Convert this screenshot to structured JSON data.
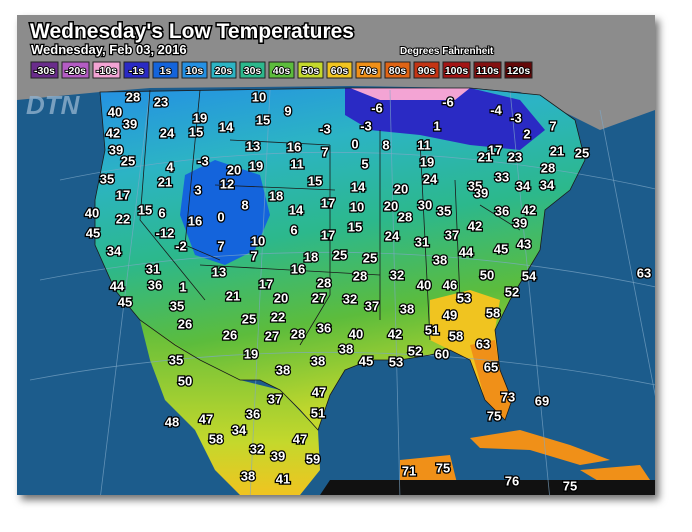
{
  "header": {
    "title": "Wednesday's Low Temperatures",
    "date": "Wednesday, Feb 03, 2016",
    "units": "Degrees Fahrenheit"
  },
  "logo": "DTN",
  "legend": [
    {
      "label": "-30s",
      "color": "#6a2c8c"
    },
    {
      "label": "-20s",
      "color": "#b45cc4"
    },
    {
      "label": "-10s",
      "color": "#f3a4d4"
    },
    {
      "label": "-1s",
      "color": "#2a2ac4"
    },
    {
      "label": "1s",
      "color": "#1464dc"
    },
    {
      "label": "10s",
      "color": "#2490e4"
    },
    {
      "label": "20s",
      "color": "#2cb4c4"
    },
    {
      "label": "30s",
      "color": "#2cb88c"
    },
    {
      "label": "40s",
      "color": "#5cbc3c"
    },
    {
      "label": "50s",
      "color": "#c4d82c"
    },
    {
      "label": "60s",
      "color": "#f0c420"
    },
    {
      "label": "70s",
      "color": "#f09018"
    },
    {
      "label": "80s",
      "color": "#e06414"
    },
    {
      "label": "90s",
      "color": "#c43414"
    },
    {
      "label": "100s",
      "color": "#a41414"
    },
    {
      "label": "110s",
      "color": "#841010"
    },
    {
      "label": "120s",
      "color": "#640808"
    }
  ],
  "temperatures": [
    28,
    23,
    10,
    9,
    -6,
    -6,
    -4,
    -3,
    7,
    40,
    39,
    19,
    15,
    14,
    -3,
    -3,
    1,
    2,
    42,
    24,
    15,
    13,
    16,
    7,
    0,
    8,
    11,
    17,
    21,
    23,
    21,
    25,
    39,
    25,
    -3,
    4,
    20,
    19,
    11,
    5,
    19,
    28,
    35,
    21,
    12,
    15,
    14,
    20,
    24,
    33,
    34,
    34,
    3,
    17,
    18,
    17,
    10,
    20,
    30,
    35,
    35,
    39,
    36,
    42,
    40,
    22,
    15,
    6,
    8,
    14,
    0,
    16,
    28,
    39,
    45,
    -12,
    6,
    17,
    15,
    24,
    31,
    37,
    42,
    34,
    -2,
    7,
    10,
    7,
    18,
    25,
    25,
    38,
    44,
    45,
    43,
    31,
    13,
    16,
    28,
    32,
    50,
    54,
    63,
    44,
    36,
    1,
    17,
    28,
    40,
    46,
    52,
    45,
    35,
    21,
    20,
    27,
    32,
    37,
    38,
    53,
    26,
    25,
    22,
    36,
    40,
    42,
    51,
    49,
    58,
    26,
    27,
    28,
    58,
    63,
    19,
    38,
    52,
    60,
    45,
    53,
    35,
    38,
    65,
    50,
    38,
    47,
    73,
    69,
    37,
    48,
    47,
    36,
    51,
    75,
    58,
    34,
    47,
    32,
    39,
    59,
    71,
    75,
    38,
    41,
    76,
    75
  ]
}
